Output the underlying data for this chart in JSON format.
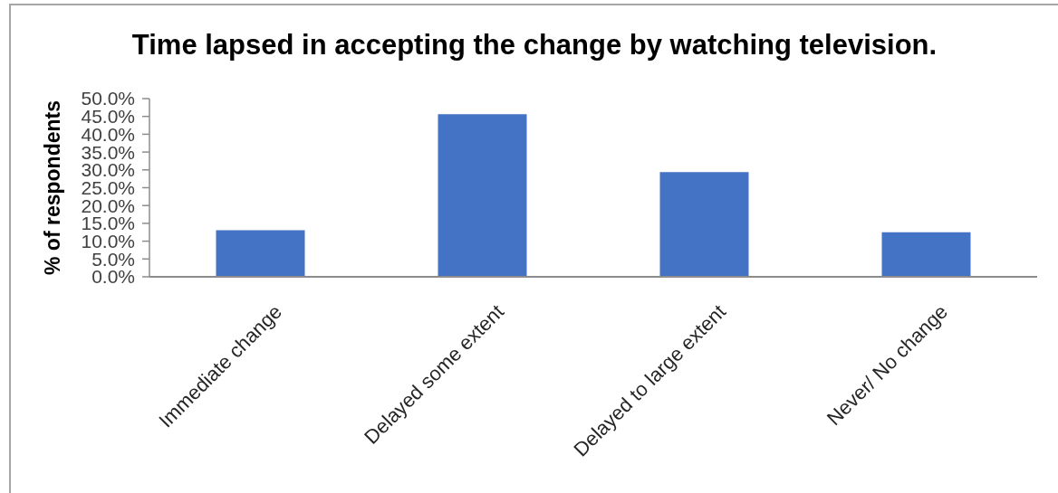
{
  "chart_data": {
    "type": "bar",
    "title": "Time lapsed in accepting the change by watching television.",
    "ylabel": "% of respondents",
    "categories": [
      "Immediate change",
      "Delayed some extent",
      "Delayed to large extent",
      "Never/ No change"
    ],
    "values": [
      13.1,
      45.6,
      29.4,
      12.5
    ],
    "color": "#4472c4",
    "ylim": [
      0,
      50
    ],
    "yticks": [
      {
        "value": 0,
        "label": "0.0%"
      },
      {
        "value": 5,
        "label": "5.0%"
      },
      {
        "value": 10,
        "label": "10.0%"
      },
      {
        "value": 15,
        "label": "15.0%"
      },
      {
        "value": 20,
        "label": "20.0%"
      },
      {
        "value": 25,
        "label": "25.0%"
      },
      {
        "value": 30,
        "label": "30.0%"
      },
      {
        "value": 35,
        "label": "35.0%"
      },
      {
        "value": 40,
        "label": "40.0%"
      },
      {
        "value": 45,
        "label": "45.0%"
      },
      {
        "value": 50,
        "label": "50.0%"
      }
    ]
  }
}
